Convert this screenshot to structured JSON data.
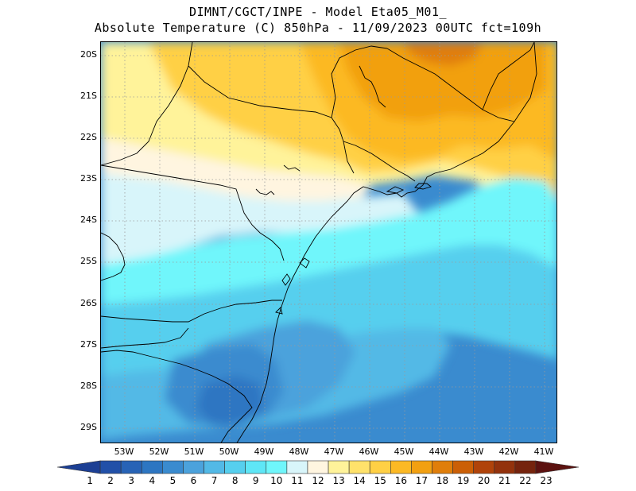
{
  "title": {
    "line1": "DIMNT/CGCT/INPE -  Model Eta05_M01_",
    "line2": "Absolute Temperature (C) 850hPa -  11/09/2023 00UTC fct=109h"
  },
  "axes": {
    "lat_labels": [
      "20S",
      "21S",
      "22S",
      "23S",
      "24S",
      "25S",
      "26S",
      "27S",
      "28S",
      "29S"
    ],
    "lon_labels": [
      "53W",
      "52W",
      "51W",
      "50W",
      "49W",
      "48W",
      "47W",
      "46W",
      "45W",
      "44W",
      "43W",
      "42W",
      "41W"
    ]
  },
  "colorbar": {
    "labels": [
      "1",
      "2",
      "3",
      "4",
      "5",
      "6",
      "7",
      "8",
      "9",
      "10",
      "11",
      "12",
      "13",
      "14",
      "15",
      "16",
      "17",
      "18",
      "19",
      "20",
      "21",
      "22",
      "23"
    ],
    "colors": [
      "#1c3f94",
      "#2150a8",
      "#2763b6",
      "#2d76c2",
      "#3a8bcf",
      "#4ba2dc",
      "#52b9e6",
      "#56cfee",
      "#5ee6f6",
      "#6ff6fb",
      "#d8f5fa",
      "#fff5e0",
      "#fff39a",
      "#ffe26b",
      "#ffd045",
      "#fcb924",
      "#f2a011",
      "#e07e0a",
      "#cb5f06",
      "#b0430a",
      "#93320c",
      "#75230d",
      "#5c1210"
    ]
  },
  "map": {
    "region": "South/Southeast Brazil",
    "variable": "Absolute Temperature (C) 850hPa"
  }
}
